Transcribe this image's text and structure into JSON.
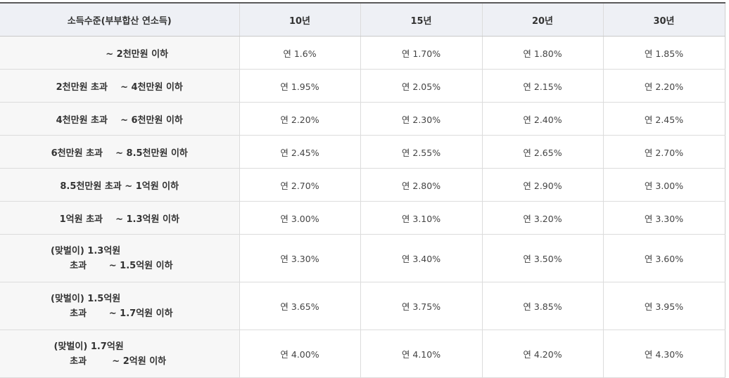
{
  "table": {
    "header": {
      "income": "소득수준(부부합산 연소득)",
      "periods": [
        "10년",
        "15년",
        "20년",
        "30년"
      ]
    },
    "rows": [
      {
        "label": "           ~ 2천만원 이하",
        "rates": [
          "연 1.6%",
          "연 1.70%",
          "연 1.80%",
          "연 1.85%"
        ]
      },
      {
        "label": "2천만원 초과    ~ 4천만원 이하",
        "rates": [
          "연 1.95%",
          "연 2.05%",
          "연 2.15%",
          "연 2.20%"
        ]
      },
      {
        "label": "4천만원 초과    ~ 6천만원 이하",
        "rates": [
          "연 2.20%",
          "연 2.30%",
          "연 2.40%",
          "연 2.45%"
        ]
      },
      {
        "label": "6천만원 초과    ~ 8.5천만원 이하",
        "rates": [
          "연 2.45%",
          "연 2.55%",
          "연 2.65%",
          "연 2.70%"
        ]
      },
      {
        "label": "8.5천만원 초과 ~ 1억원 이하",
        "rates": [
          "연 2.70%",
          "연 2.80%",
          "연 2.90%",
          "연 3.00%"
        ]
      },
      {
        "label": "1억원 초과    ~ 1.3억원 이하",
        "rates": [
          "연 3.00%",
          "연 3.10%",
          "연 3.20%",
          "연 3.30%"
        ]
      },
      {
        "line1": "(맞벌이) 1.3억원",
        "line2": "      초과       ~ 1.5억원 이하",
        "rates": [
          "연 3.30%",
          "연 3.40%",
          "연 3.50%",
          "연 3.60%"
        ]
      },
      {
        "line1": "(맞벌이) 1.5억원",
        "line2": "      초과       ~ 1.7억원 이하",
        "rates": [
          "연 3.65%",
          "연 3.75%",
          "연 3.85%",
          "연 3.95%"
        ]
      },
      {
        "line1": " (맞벌이) 1.7억원",
        "line2": "      초과        ~ 2억원 이하",
        "rates": [
          "연 4.00%",
          "연 4.10%",
          "연 4.20%",
          "연 4.30%"
        ]
      }
    ]
  }
}
